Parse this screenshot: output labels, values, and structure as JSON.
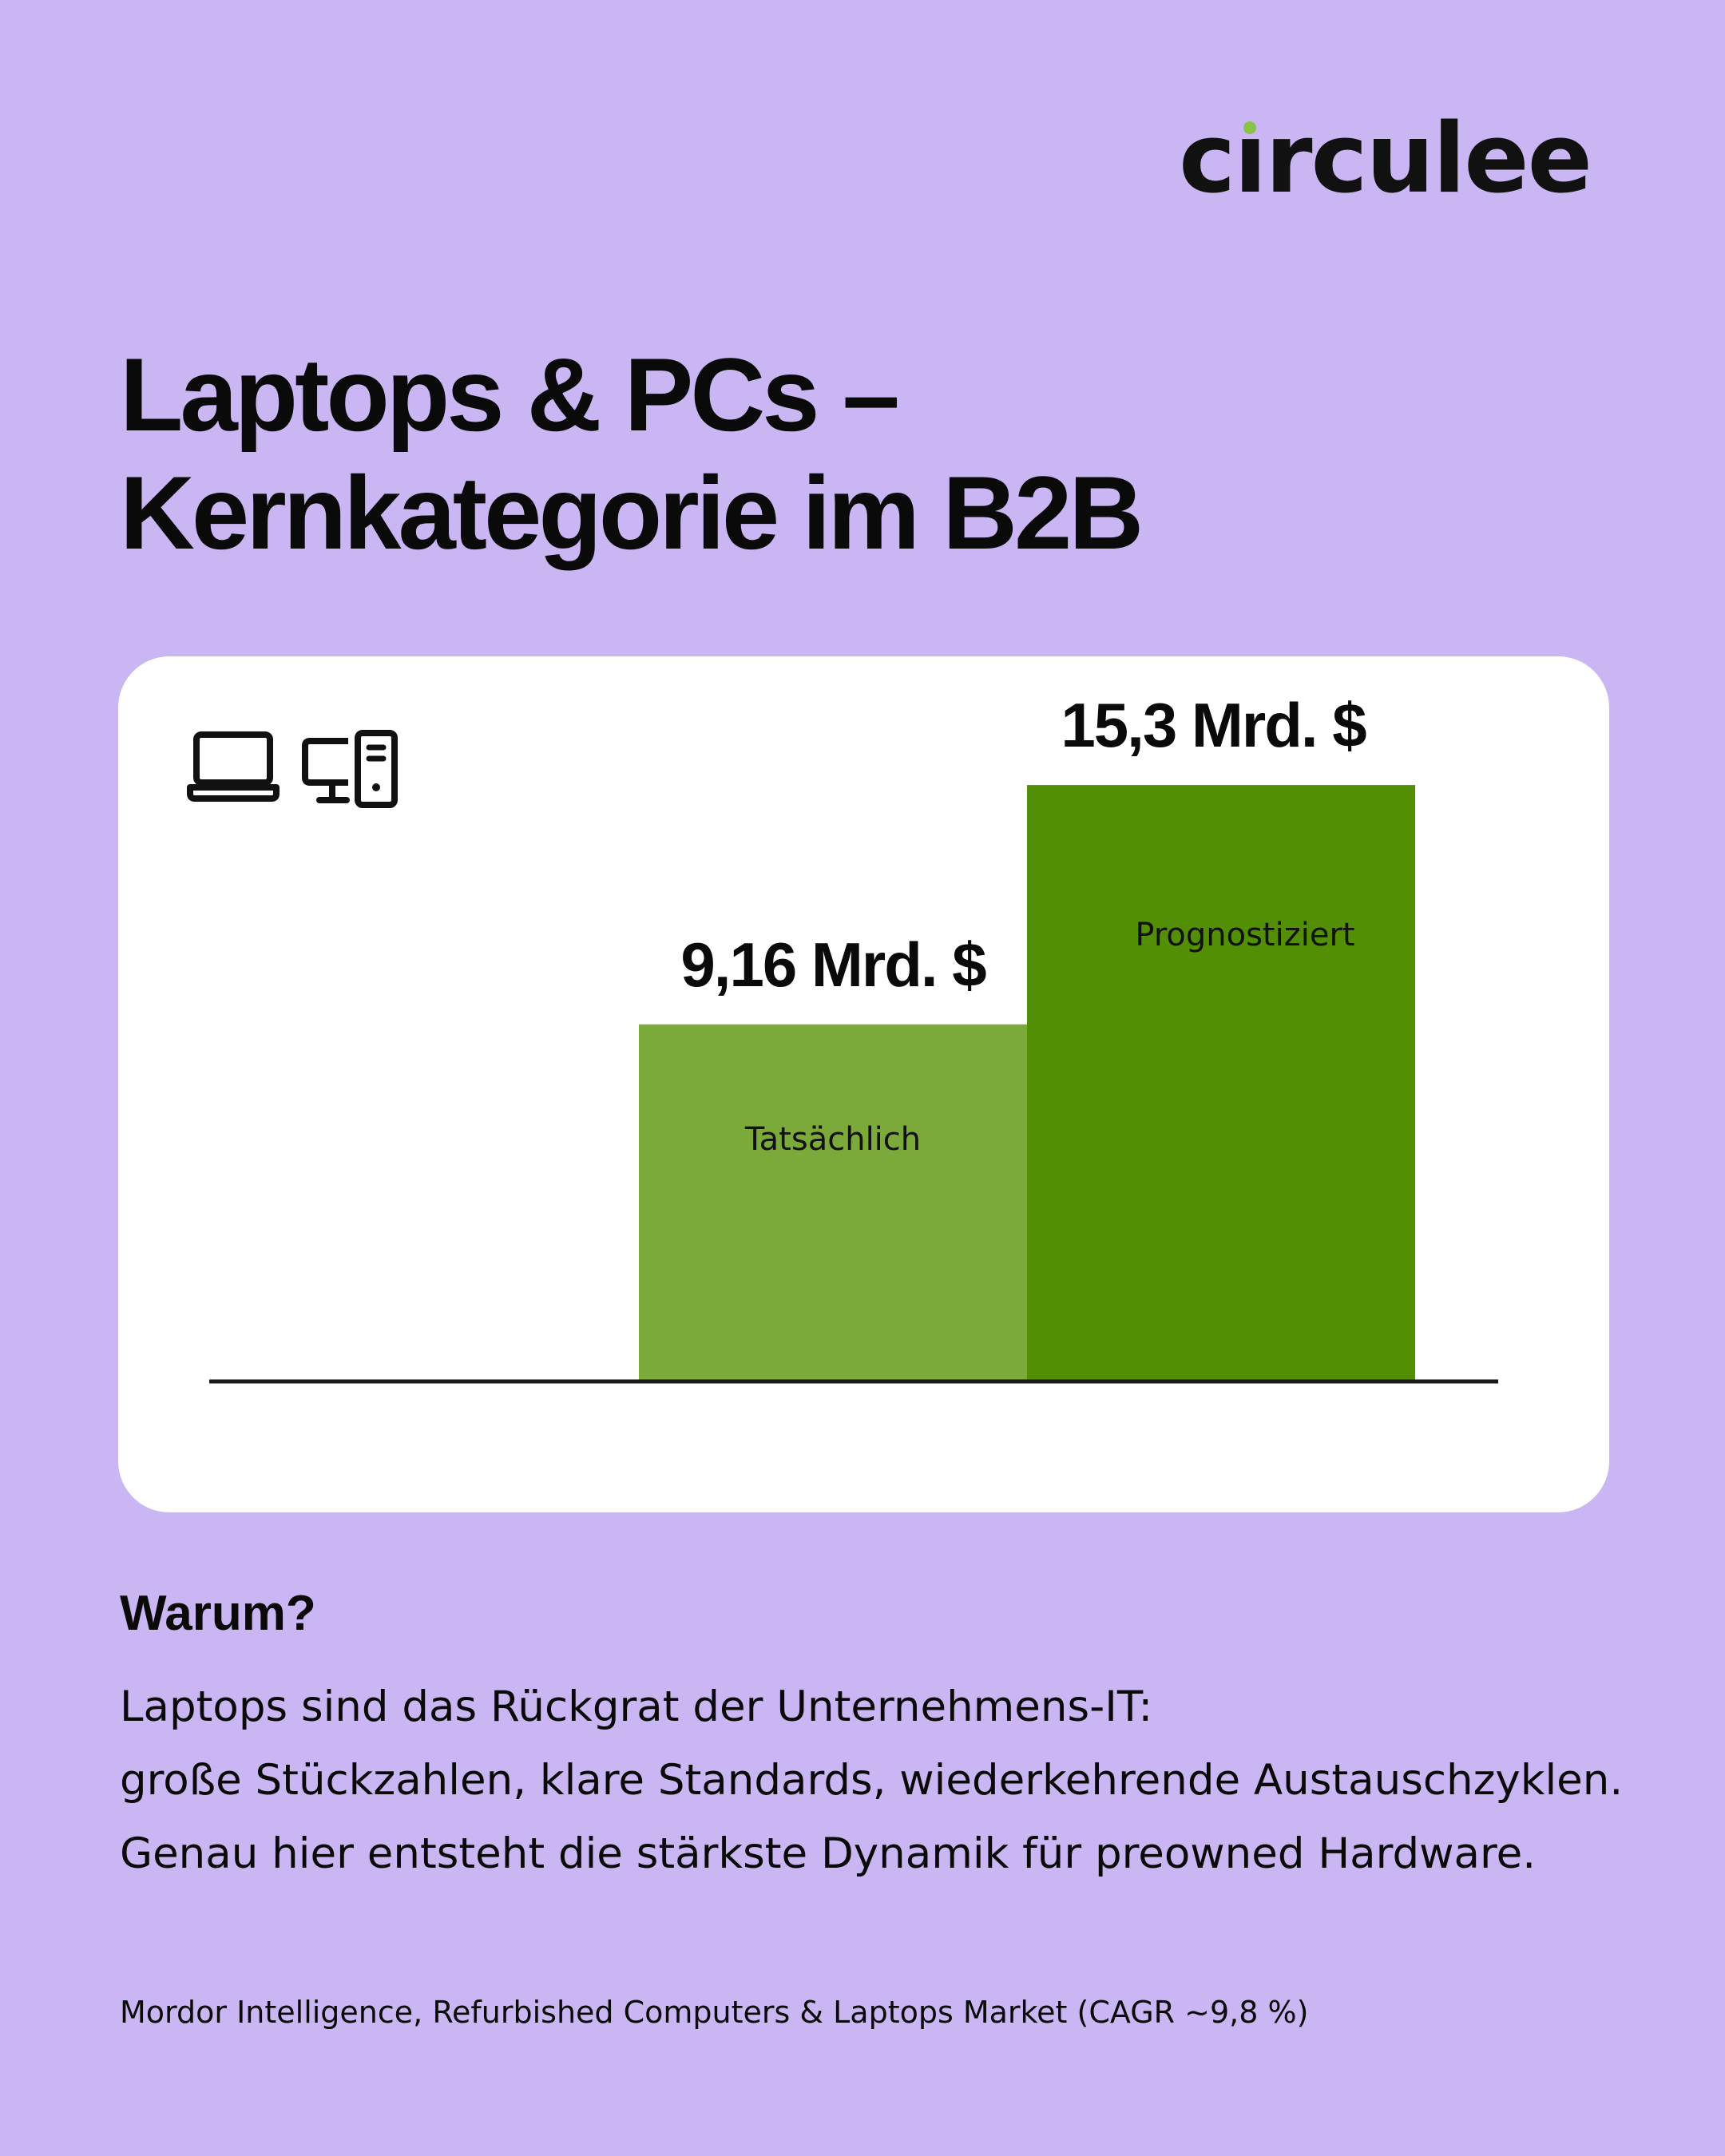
{
  "brand": {
    "logo_text": "circulee"
  },
  "title_lines": [
    "Laptops & PCs –",
    "Kernkategorie im B2B"
  ],
  "icons": [
    "laptop-icon",
    "desktop-computer-icon"
  ],
  "colors": {
    "background": "#c9b6f2",
    "bar_actual": "#7ba93a",
    "bar_forecast": "#528f05",
    "card": "#ffffff"
  },
  "chart_data": {
    "type": "bar",
    "categories": [
      "Tatsächlich",
      "Prognostiziert"
    ],
    "values": [
      9.16,
      15.3
    ],
    "data_labels": [
      "9,16 Mrd. $",
      "15,3 Mrd. $"
    ],
    "unit": "Mrd. $",
    "title": "",
    "xlabel": "",
    "ylabel": "",
    "ylim": [
      0,
      18.6
    ],
    "grid": false,
    "legend": "none"
  },
  "why": {
    "heading": "Warum?",
    "paragraphs": [
      "Laptops sind das Rückgrat der Unternehmens-IT:",
      "große Stückzahlen, klare Standards, wiederkehrende Austauschzyklen.",
      "Genau hier entsteht die stärkste Dynamik für preowned Hardware."
    ]
  },
  "source": "Mordor Intelligence, Refurbished Computers & Laptops Market (CAGR ~9,8 %)"
}
